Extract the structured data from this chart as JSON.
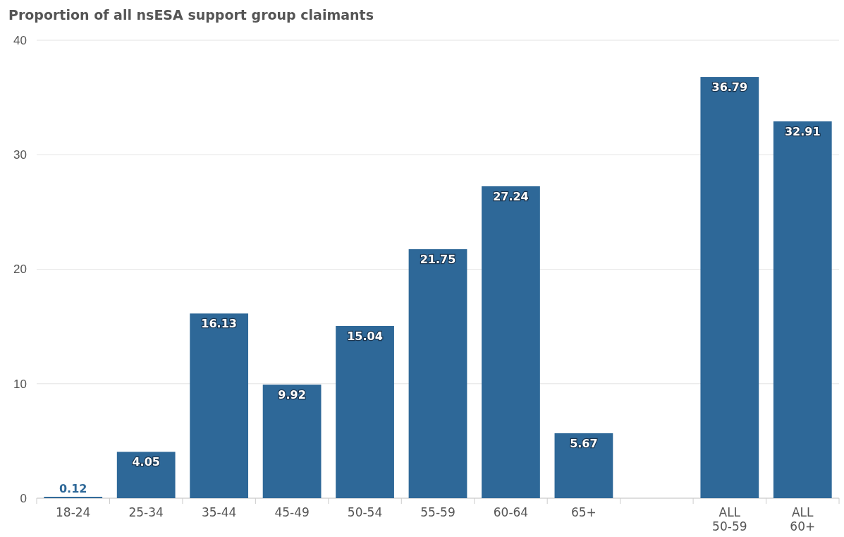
{
  "chart_data": {
    "type": "bar",
    "title": "Proportion of all nsESA support group claimants",
    "categories": [
      "18-24",
      "25-34",
      "35-44",
      "45-49",
      "50-54",
      "55-59",
      "60-64",
      "65+",
      null,
      "ALL 50-59",
      "ALL 60+"
    ],
    "values": [
      0.12,
      4.05,
      16.13,
      9.92,
      15.04,
      21.75,
      27.24,
      5.67,
      null,
      36.79,
      32.91
    ],
    "color": "#2e6898",
    "ylim": [
      0,
      40
    ],
    "yticks": [
      0,
      10,
      20,
      30,
      40
    ],
    "grid": "y",
    "data_labels": true
  }
}
